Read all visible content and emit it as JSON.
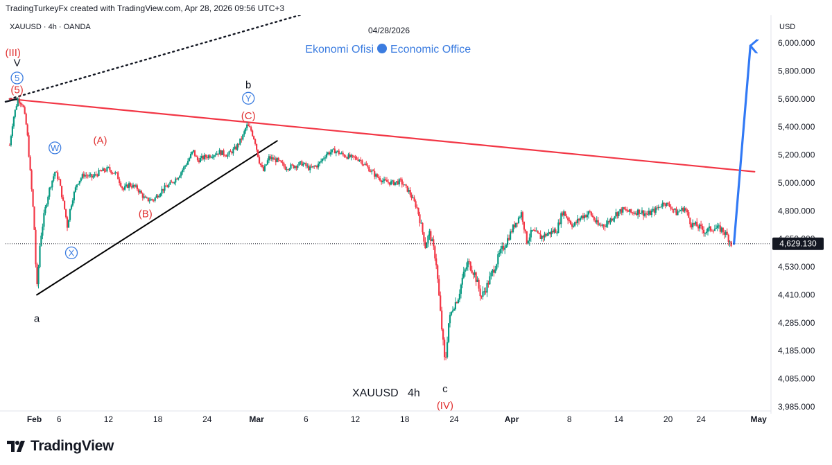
{
  "header": {
    "text": "TradingTurkeyFx created with TradingView.com, Apr 28, 2026 09:56 UTC+3"
  },
  "footer": {
    "logo_text": "TradingView"
  },
  "chart_data": {
    "type": "candlestick",
    "symbol_line": "XAUUSD · 4h · OANDA",
    "date_label": "04/28/2026",
    "watermark": "Ekonomi Ofisi",
    "watermark_right": "Economic Office",
    "bottom_label": "XAUUSD   4h",
    "currency": "USD",
    "y_ticks": [
      "6,000.000",
      "5,800.000",
      "5,600.000",
      "5,400.000",
      "5,200.000",
      "5,000.000",
      "4,800.000",
      "4,650.000",
      "4,530.000",
      "4,410.000",
      "4,285.000",
      "4,185.000",
      "4,085.000",
      "3,985.000"
    ],
    "y_tick_values": [
      6000,
      5800,
      5600,
      5400,
      5200,
      5000,
      4800,
      4650,
      4530,
      4410,
      4285,
      4185,
      4085,
      3985
    ],
    "x_ticks": [
      {
        "label": "Feb",
        "day": 3,
        "bold": true
      },
      {
        "label": "6",
        "day": 6,
        "bold": false
      },
      {
        "label": "12",
        "day": 12,
        "bold": false
      },
      {
        "label": "18",
        "day": 18,
        "bold": false
      },
      {
        "label": "24",
        "day": 24,
        "bold": false
      },
      {
        "label": "Mar",
        "day": 30,
        "bold": true
      },
      {
        "label": "6",
        "day": 36,
        "bold": false
      },
      {
        "label": "12",
        "day": 42,
        "bold": false
      },
      {
        "label": "18",
        "day": 48,
        "bold": false
      },
      {
        "label": "24",
        "day": 54,
        "bold": false
      },
      {
        "label": "Apr",
        "day": 61,
        "bold": true
      },
      {
        "label": "8",
        "day": 68,
        "bold": false
      },
      {
        "label": "14",
        "day": 74,
        "bold": false
      },
      {
        "label": "20",
        "day": 80,
        "bold": false
      },
      {
        "label": "24",
        "day": 84,
        "bold": false
      },
      {
        "label": "May",
        "day": 91,
        "bold": true
      }
    ],
    "last_price": "4,629.130",
    "last_price_value": 4629.13,
    "colors": {
      "up": "#089981",
      "down": "#f23645",
      "resistance": "#f23645",
      "support": "#000000",
      "projection": "#3179f5",
      "wave_red": "#e03030",
      "wave_blue": "#3b7ce0"
    },
    "price_path": [
      [
        0,
        5270
      ],
      [
        0.4,
        5450
      ],
      [
        1.0,
        5600
      ],
      [
        1.6,
        5560
      ],
      [
        2.1,
        5380
      ],
      [
        2.6,
        5000
      ],
      [
        3.0,
        4700
      ],
      [
        3.3,
        4420
      ],
      [
        3.7,
        4640
      ],
      [
        4.2,
        4780
      ],
      [
        4.8,
        4950
      ],
      [
        5.5,
        5080
      ],
      [
        6.0,
        5020
      ],
      [
        6.5,
        4860
      ],
      [
        7.0,
        4720
      ],
      [
        7.6,
        4880
      ],
      [
        8.2,
        5000
      ],
      [
        9.0,
        5060
      ],
      [
        10.0,
        5040
      ],
      [
        11.0,
        5080
      ],
      [
        12.0,
        5100
      ],
      [
        13.0,
        5060
      ],
      [
        13.8,
        4950
      ],
      [
        14.5,
        4990
      ],
      [
        15.5,
        4960
      ],
      [
        16.5,
        4880
      ],
      [
        17.5,
        4880
      ],
      [
        18.5,
        4950
      ],
      [
        19.5,
        4990
      ],
      [
        20.5,
        5050
      ],
      [
        21.5,
        5140
      ],
      [
        22.3,
        5230
      ],
      [
        22.8,
        5160
      ],
      [
        23.5,
        5180
      ],
      [
        24.5,
        5200
      ],
      [
        25.5,
        5220
      ],
      [
        26.5,
        5200
      ],
      [
        27.5,
        5250
      ],
      [
        28.3,
        5330
      ],
      [
        28.8,
        5410
      ],
      [
        29.3,
        5380
      ],
      [
        29.8,
        5300
      ],
      [
        30.3,
        5160
      ],
      [
        30.8,
        5080
      ],
      [
        31.5,
        5180
      ],
      [
        32.5,
        5160
      ],
      [
        33.5,
        5110
      ],
      [
        34.5,
        5120
      ],
      [
        35.5,
        5140
      ],
      [
        36.5,
        5100
      ],
      [
        37.5,
        5130
      ],
      [
        38.5,
        5210
      ],
      [
        39.5,
        5230
      ],
      [
        40.5,
        5200
      ],
      [
        41.5,
        5180
      ],
      [
        42.5,
        5170
      ],
      [
        43.5,
        5110
      ],
      [
        44.5,
        5050
      ],
      [
        45.5,
        5010
      ],
      [
        46.5,
        5000
      ],
      [
        47.5,
        5010
      ],
      [
        48.5,
        4940
      ],
      [
        49.5,
        4820
      ],
      [
        50.5,
        4620
      ],
      [
        51.0,
        4680
      ],
      [
        51.8,
        4560
      ],
      [
        52.4,
        4300
      ],
      [
        52.9,
        4130
      ],
      [
        53.3,
        4280
      ],
      [
        53.8,
        4350
      ],
      [
        54.5,
        4400
      ],
      [
        55.0,
        4480
      ],
      [
        55.7,
        4550
      ],
      [
        56.5,
        4500
      ],
      [
        57.3,
        4400
      ],
      [
        58.0,
        4450
      ],
      [
        58.8,
        4520
      ],
      [
        59.5,
        4580
      ],
      [
        60.5,
        4650
      ],
      [
        61.5,
        4740
      ],
      [
        62.2,
        4790
      ],
      [
        62.8,
        4640
      ],
      [
        63.5,
        4690
      ],
      [
        64.5,
        4660
      ],
      [
        65.5,
        4680
      ],
      [
        66.5,
        4700
      ],
      [
        67.2,
        4800
      ],
      [
        67.8,
        4760
      ],
      [
        68.5,
        4720
      ],
      [
        69.5,
        4770
      ],
      [
        70.5,
        4790
      ],
      [
        71.5,
        4720
      ],
      [
        72.5,
        4730
      ],
      [
        73.5,
        4780
      ],
      [
        74.5,
        4810
      ],
      [
        75.5,
        4790
      ],
      [
        76.5,
        4800
      ],
      [
        77.5,
        4780
      ],
      [
        78.5,
        4810
      ],
      [
        79.5,
        4860
      ],
      [
        80.3,
        4830
      ],
      [
        81.0,
        4790
      ],
      [
        82.0,
        4820
      ],
      [
        82.8,
        4730
      ],
      [
        83.5,
        4720
      ],
      [
        84.5,
        4690
      ],
      [
        85.5,
        4710
      ],
      [
        86.5,
        4700
      ],
      [
        87.2,
        4665
      ],
      [
        87.7,
        4629
      ]
    ],
    "wave_labels": [
      {
        "text": "(III)",
        "day": 0.4,
        "price": 5930,
        "color": "red"
      },
      {
        "text": "V",
        "day": 0.9,
        "price": 5860,
        "color": "black"
      },
      {
        "text": "5",
        "day": 0.9,
        "price": 5750,
        "color": "blue",
        "circle": true
      },
      {
        "text": "(5)",
        "day": 0.9,
        "price": 5665,
        "color": "red"
      },
      {
        "text": "W",
        "day": 5.5,
        "price": 5250,
        "color": "blue",
        "circle": true
      },
      {
        "text": "(A)",
        "day": 11.0,
        "price": 5305,
        "color": "red"
      },
      {
        "text": "(B)",
        "day": 16.5,
        "price": 4785,
        "color": "red"
      },
      {
        "text": "X",
        "day": 7.5,
        "price": 4590,
        "color": "blue",
        "circle": true
      },
      {
        "text": "a",
        "day": 3.3,
        "price": 4305,
        "color": "black"
      },
      {
        "text": "b",
        "day": 29.0,
        "price": 5700,
        "color": "black"
      },
      {
        "text": "Y",
        "day": 29.0,
        "price": 5605,
        "color": "blue",
        "circle": true
      },
      {
        "text": "(C)",
        "day": 29.0,
        "price": 5480,
        "color": "red"
      },
      {
        "text": "c",
        "day": 52.9,
        "price": 4050,
        "color": "black"
      },
      {
        "text": "(IV)",
        "day": 52.9,
        "price": 3990,
        "color": "red"
      }
    ],
    "lines": {
      "resistance": [
        [
          0,
          5600
        ],
        [
          90.5,
          5080
        ]
      ],
      "support": [
        [
          3.3,
          4410
        ],
        [
          32.5,
          5300
        ]
      ],
      "dotted": [
        [
          0,
          5600
        ],
        [
          45.0,
          6365
        ]
      ],
      "wave_v_tick": [
        [
          -0.5,
          5580
        ],
        [
          0.9,
          5600
        ]
      ],
      "projection": [
        [
          88.0,
          4629
        ],
        [
          90.0,
          5980
        ]
      ]
    },
    "ylim": [
      3985,
      6000
    ],
    "xlim": [
      -0.5,
      92.5
    ],
    "grid": false
  }
}
